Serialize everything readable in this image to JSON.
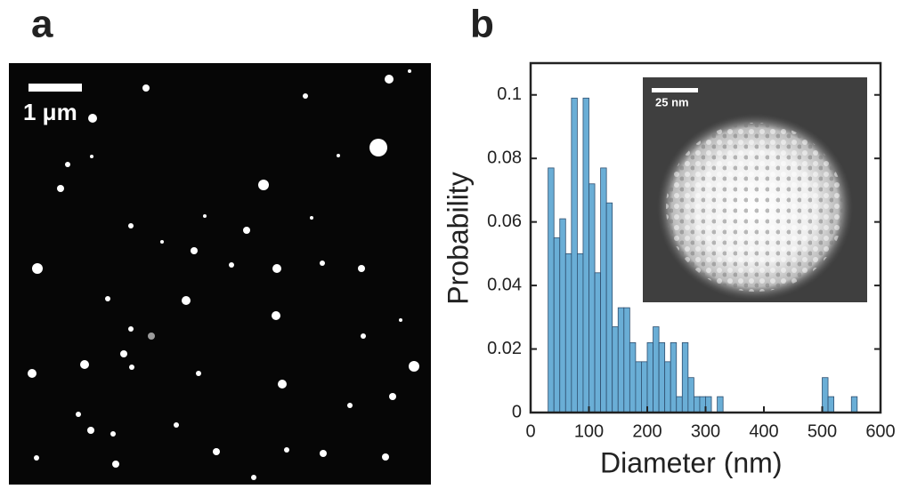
{
  "panel_a": {
    "label": "a",
    "scale_bar": "1 μm"
  },
  "chart_data": {
    "type": "histogram",
    "panel_label": "b",
    "xlabel": "Diameter (nm)",
    "ylabel": "Probability",
    "bins": [
      30,
      40,
      50,
      60,
      70,
      80,
      90,
      100,
      110,
      120,
      130,
      140,
      150,
      160,
      170,
      180,
      190,
      200,
      210,
      220,
      230,
      240,
      250,
      260,
      270,
      280,
      290,
      300,
      310,
      320,
      330,
      340,
      350,
      360,
      370,
      380,
      390,
      400,
      410,
      420,
      430,
      440,
      450,
      460,
      470,
      480,
      490,
      500,
      510,
      520,
      530,
      540,
      550,
      560
    ],
    "values": [
      0.077,
      0.055,
      0.061,
      0.05,
      0.099,
      0.05,
      0.099,
      0.072,
      0.044,
      0.077,
      0.066,
      0.027,
      0.033,
      0.033,
      0.022,
      0.016,
      0.016,
      0.022,
      0.027,
      0.022,
      0.016,
      0.022,
      0.005,
      0.022,
      0.011,
      0.005,
      0.005,
      0.005,
      0,
      0.005,
      0,
      0,
      0,
      0,
      0,
      0,
      0,
      0,
      0,
      0,
      0,
      0,
      0,
      0,
      0,
      0,
      0,
      0.011,
      0.005,
      0,
      0,
      0,
      0.005
    ],
    "color": "#6aaed6",
    "xlim": [
      0,
      600
    ],
    "ylim": [
      0,
      0.11
    ],
    "xticks": [
      0,
      100,
      200,
      300,
      400,
      500,
      600
    ],
    "yticks": [
      0,
      0.02,
      0.04,
      0.06,
      0.08,
      0.1
    ],
    "inset": {
      "scale_bar": "25 nm"
    }
  }
}
